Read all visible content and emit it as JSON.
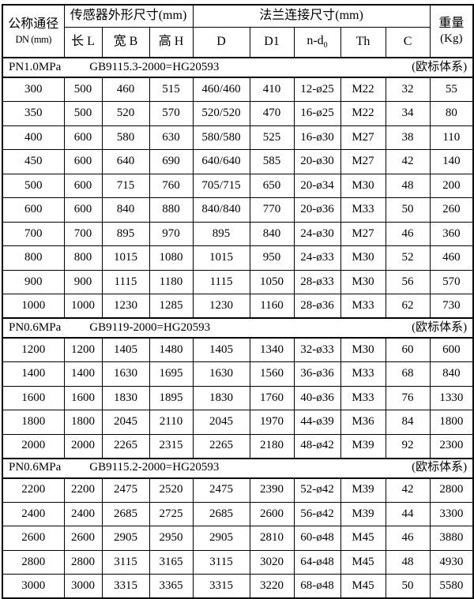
{
  "table": {
    "header": {
      "dn": {
        "line1": "公称通径",
        "line2": "DN (mm)"
      },
      "sensor_group": "传感器外形尺寸(mm)",
      "flange_group": "法兰连接尺寸(mm)",
      "weight": {
        "line1": "重量",
        "line2": "(Kg)"
      },
      "sub_columns": {
        "length": "长 L",
        "width": "宽 B",
        "height": "高 H",
        "d": "D",
        "d1": "D1",
        "nd_base": "n-d",
        "nd_sub": "0",
        "th": "Th",
        "c": "C"
      }
    },
    "columns_semantic": [
      "dn",
      "length-l",
      "width-b",
      "height-h",
      "d",
      "d1",
      "n-d0",
      "th",
      "c",
      "weight"
    ],
    "sections": [
      {
        "pn": "PN1.0MPa",
        "standard": "GB9115.3-2000=HG20593",
        "note": "(欧标体系)",
        "rows": [
          [
            "300",
            "500",
            "460",
            "515",
            "460/460",
            "410",
            "12-ø25",
            "M22",
            "32",
            "55"
          ],
          [
            "350",
            "500",
            "520",
            "570",
            "520/520",
            "470",
            "16-ø25",
            "M22",
            "34",
            "80"
          ],
          [
            "400",
            "600",
            "580",
            "630",
            "580/580",
            "525",
            "16-ø30",
            "M27",
            "38",
            "110"
          ],
          [
            "450",
            "600",
            "640",
            "690",
            "640/640",
            "585",
            "20-ø30",
            "M27",
            "42",
            "140"
          ],
          [
            "500",
            "600",
            "715",
            "760",
            "705/715",
            "650",
            "20-ø34",
            "M30",
            "48",
            "200"
          ],
          [
            "600",
            "600",
            "840",
            "880",
            "840/840",
            "770",
            "20-ø36",
            "M33",
            "50",
            "260"
          ],
          [
            "700",
            "700",
            "895",
            "970",
            "895",
            "840",
            "24-ø30",
            "M27",
            "46",
            "360"
          ],
          [
            "800",
            "800",
            "1015",
            "1080",
            "1015",
            "950",
            "24-ø33",
            "M30",
            "52",
            "460"
          ],
          [
            "900",
            "900",
            "1115",
            "1180",
            "1115",
            "1050",
            "28-ø33",
            "M30",
            "56",
            "570"
          ],
          [
            "1000",
            "1000",
            "1230",
            "1285",
            "1230",
            "1160",
            "28-ø36",
            "M33",
            "62",
            "730"
          ]
        ]
      },
      {
        "pn": "PN0.6MPa",
        "standard": "GB9119-2000=HG20593",
        "note": "(欧标体系)",
        "rows": [
          [
            "1200",
            "1200",
            "1405",
            "1480",
            "1405",
            "1340",
            "32-ø33",
            "M30",
            "60",
            "600"
          ],
          [
            "1400",
            "1400",
            "1630",
            "1695",
            "1630",
            "1560",
            "36-ø36",
            "M33",
            "68",
            "840"
          ],
          [
            "1600",
            "1600",
            "1830",
            "1895",
            "1830",
            "1760",
            "40-ø36",
            "M33",
            "76",
            "1330"
          ],
          [
            "1800",
            "1800",
            "2045",
            "2110",
            "2045",
            "1970",
            "44-ø39",
            "M36",
            "84",
            "1800"
          ],
          [
            "2000",
            "2000",
            "2265",
            "2315",
            "2265",
            "2180",
            "48-ø42",
            "M39",
            "92",
            "2300"
          ]
        ]
      },
      {
        "pn": "PN0.6MPa",
        "standard": "GB9115.2-2000=HG20593",
        "note": "(欧标体系)",
        "rows": [
          [
            "2200",
            "2200",
            "2475",
            "2520",
            "2475",
            "2390",
            "52-ø42",
            "M39",
            "42",
            "2800"
          ],
          [
            "2400",
            "2400",
            "2685",
            "2725",
            "2685",
            "2600",
            "56-ø42",
            "M39",
            "44",
            "3300"
          ],
          [
            "2600",
            "2600",
            "2905",
            "2950",
            "2905",
            "2810",
            "60-ø48",
            "M45",
            "46",
            "3880"
          ],
          [
            "2800",
            "2800",
            "3115",
            "3165",
            "3115",
            "3020",
            "64-ø48",
            "M45",
            "48",
            "4930"
          ],
          [
            "3000",
            "3000",
            "3315",
            "3365",
            "3315",
            "3220",
            "68-ø48",
            "M45",
            "50",
            "5580"
          ]
        ]
      }
    ]
  }
}
